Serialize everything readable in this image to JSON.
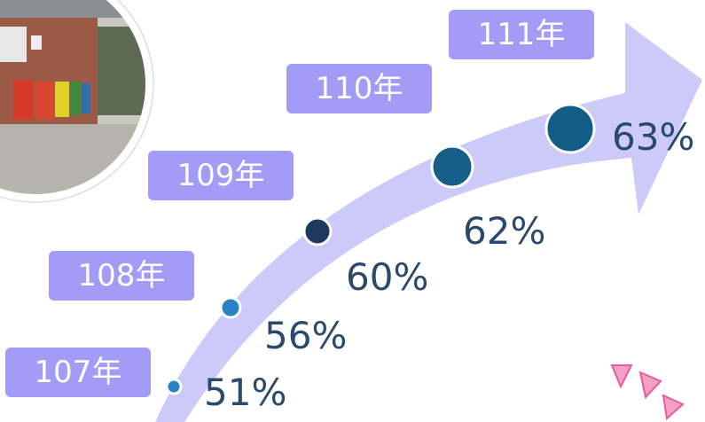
{
  "items": [
    {
      "year": "107年",
      "value": "51%"
    },
    {
      "year": "108年",
      "value": "56%"
    },
    {
      "year": "109年",
      "value": "60%"
    },
    {
      "year": "110年",
      "value": "62%"
    },
    {
      "year": "111年",
      "value": "63%"
    }
  ]
}
